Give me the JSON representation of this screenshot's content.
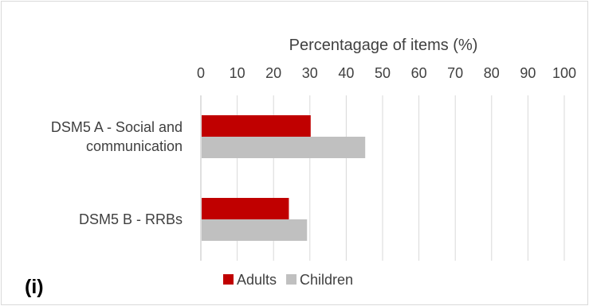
{
  "panel_label": "(i)",
  "chart_data": {
    "type": "bar",
    "orientation": "horizontal",
    "title": "Percentagage of items (%)",
    "xaxis_position": "top",
    "xlim": [
      0,
      100
    ],
    "xticks": [
      "0",
      "10",
      "20",
      "30",
      "40",
      "50",
      "60",
      "70",
      "80",
      "90",
      "100"
    ],
    "grid": true,
    "legend_position": "bottom",
    "categories": [
      "DSM5 A - Social and communication",
      "DSM5 B - RRBs"
    ],
    "category_lines": [
      [
        "DSM5 A - Social and",
        "communication"
      ],
      [
        "DSM5 B - RRBs"
      ]
    ],
    "series": [
      {
        "name": "Adults",
        "values": [
          30,
          24
        ],
        "color": "#c00000"
      },
      {
        "name": "Children",
        "values": [
          45,
          29
        ],
        "color": "#c0c0c0"
      }
    ]
  }
}
